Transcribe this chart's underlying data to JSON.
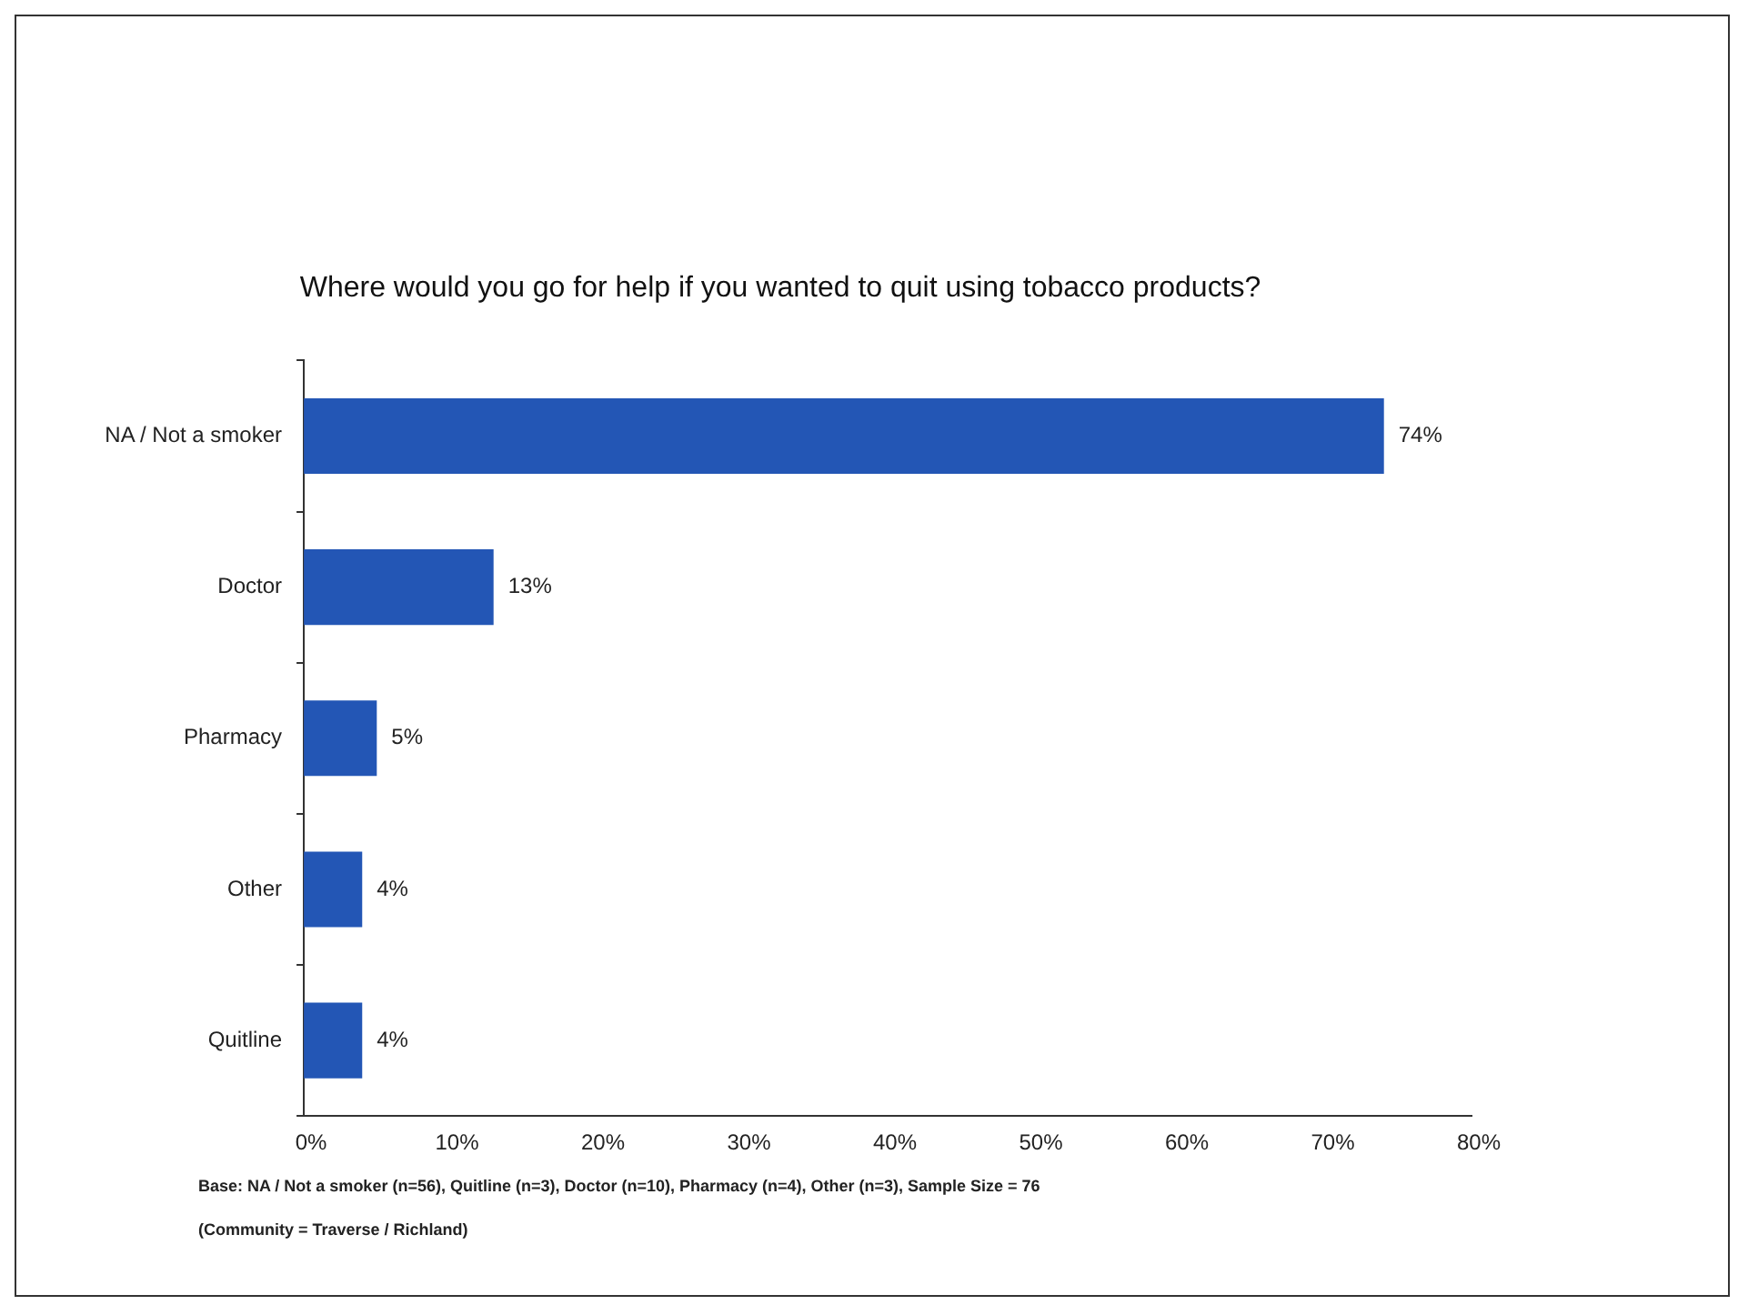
{
  "chart_data": {
    "type": "bar",
    "orientation": "horizontal",
    "title": "Where would you go for help if you wanted to quit using tobacco products?",
    "categories": [
      "NA / Not a smoker",
      "Doctor",
      "Pharmacy",
      "Other",
      "Quitline"
    ],
    "values": [
      74,
      13,
      5,
      4,
      4
    ],
    "value_labels": [
      "74%",
      "13%",
      "5%",
      "4%",
      "4%"
    ],
    "color": "#2356b5",
    "xlim": [
      0,
      80
    ],
    "xticks": [
      {
        "value": 0,
        "label": "0%"
      },
      {
        "value": 10,
        "label": "10%"
      },
      {
        "value": 20,
        "label": "20%"
      },
      {
        "value": 30,
        "label": "30%"
      },
      {
        "value": 40,
        "label": "40%"
      },
      {
        "value": 50,
        "label": "50%"
      },
      {
        "value": 60,
        "label": "60%"
      },
      {
        "value": 70,
        "label": "70%"
      },
      {
        "value": 80,
        "label": "80%"
      }
    ],
    "grid": false,
    "legend": false,
    "annotations": [
      "Base: NA / Not a smoker (n=56), Quitline (n=3), Doctor (n=10), Pharmacy (n=4), Other (n=3), Sample Size = 76",
      "(Community = Traverse / Richland)"
    ]
  }
}
